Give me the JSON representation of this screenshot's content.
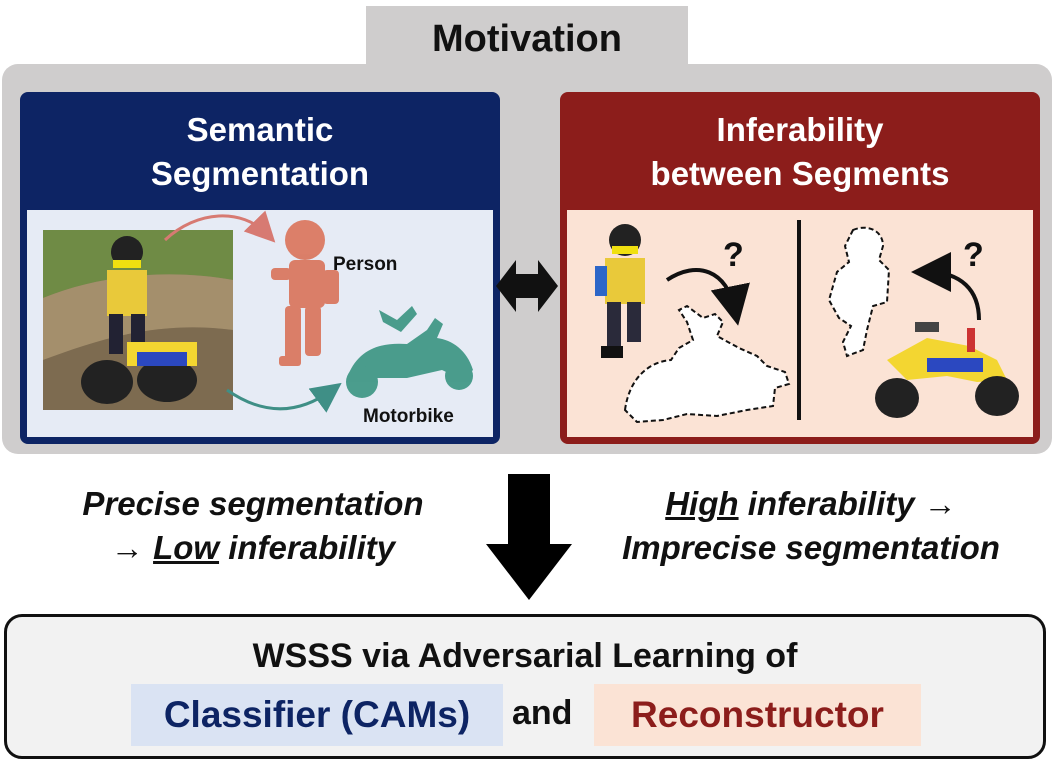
{
  "header": {
    "title": "Motivation"
  },
  "left_panel": {
    "title_line1": "Semantic",
    "title_line2": "Segmentation",
    "label_person": "Person",
    "label_motorbike": "Motorbike"
  },
  "right_panel": {
    "title_line1": "Inferability",
    "title_line2": "between Segments",
    "question_mark": "?"
  },
  "captions": {
    "left_line1": "Precise segmentation",
    "left_arrow": "→",
    "left_emph": "Low",
    "left_rest": "inferability",
    "right_emph": "High",
    "right_rest": "inferability →",
    "right_line2": "Imprecise segmentation"
  },
  "bottom": {
    "title": "WSSS via Adversarial Learning of",
    "classifier": "Classifier (CAMs)",
    "and": "and",
    "reconstructor": "Reconstructor"
  },
  "colors": {
    "navy": "#0d2464",
    "dark_red": "#8c1d1b",
    "person_mask": "#d96c50",
    "bike_mask": "#2f8f7a"
  }
}
